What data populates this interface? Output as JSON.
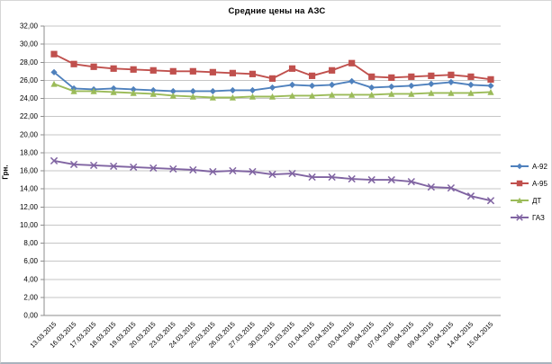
{
  "chart_data": {
    "type": "line",
    "title": "Средние цены на АЗС",
    "xlabel": "",
    "ylabel": "Грн.",
    "ylim": [
      0,
      32
    ],
    "ytick_step": 2,
    "decimal_separator": ",",
    "grid": true,
    "legend_position": "right",
    "categories": [
      "13.03.2015",
      "16.03.2015",
      "17.03.2015",
      "18.03.2015",
      "19.03.2015",
      "20.03.2015",
      "23.03.2015",
      "24.03.2015",
      "25.03.2015",
      "26.03.2015",
      "27.03.2015",
      "30.03.2015",
      "31.03.2015",
      "01.04.2015",
      "02.04.2015",
      "03.04.2015",
      "06.04.2015",
      "07.04.2015",
      "08.04.2015",
      "09.04.2015",
      "10.04.2015",
      "14.04.2015",
      "15.04.2015"
    ],
    "series": [
      {
        "name": "А-92",
        "color": "#4f81bd",
        "marker": "diamond",
        "values": [
          26.9,
          25.1,
          25.0,
          25.1,
          25.0,
          24.9,
          24.8,
          24.8,
          24.8,
          24.9,
          24.9,
          25.2,
          25.5,
          25.4,
          25.5,
          25.9,
          25.2,
          25.3,
          25.4,
          25.6,
          25.8,
          25.5,
          25.4
        ]
      },
      {
        "name": "А-95",
        "color": "#c0504d",
        "marker": "square",
        "values": [
          28.9,
          27.8,
          27.5,
          27.3,
          27.2,
          27.1,
          27.0,
          27.0,
          26.9,
          26.8,
          26.7,
          26.2,
          27.3,
          26.5,
          27.1,
          27.9,
          26.4,
          26.3,
          26.4,
          26.5,
          26.6,
          26.4,
          26.1
        ]
      },
      {
        "name": "ДТ",
        "color": "#9bbb59",
        "marker": "triangle",
        "values": [
          25.6,
          24.8,
          24.8,
          24.7,
          24.6,
          24.5,
          24.3,
          24.2,
          24.1,
          24.1,
          24.2,
          24.2,
          24.3,
          24.3,
          24.4,
          24.4,
          24.4,
          24.5,
          24.5,
          24.6,
          24.6,
          24.6,
          24.7
        ]
      },
      {
        "name": "ГАЗ",
        "color": "#8064a2",
        "marker": "x",
        "values": [
          17.1,
          16.7,
          16.6,
          16.5,
          16.4,
          16.3,
          16.2,
          16.1,
          15.9,
          16.0,
          15.9,
          15.6,
          15.7,
          15.3,
          15.3,
          15.1,
          15.0,
          15.0,
          14.8,
          14.2,
          14.1,
          13.2,
          12.7
        ]
      }
    ],
    "colors": {
      "gridline": "#c6c6c6",
      "axis": "#8e8e8e",
      "tick_text": "#000000"
    }
  }
}
